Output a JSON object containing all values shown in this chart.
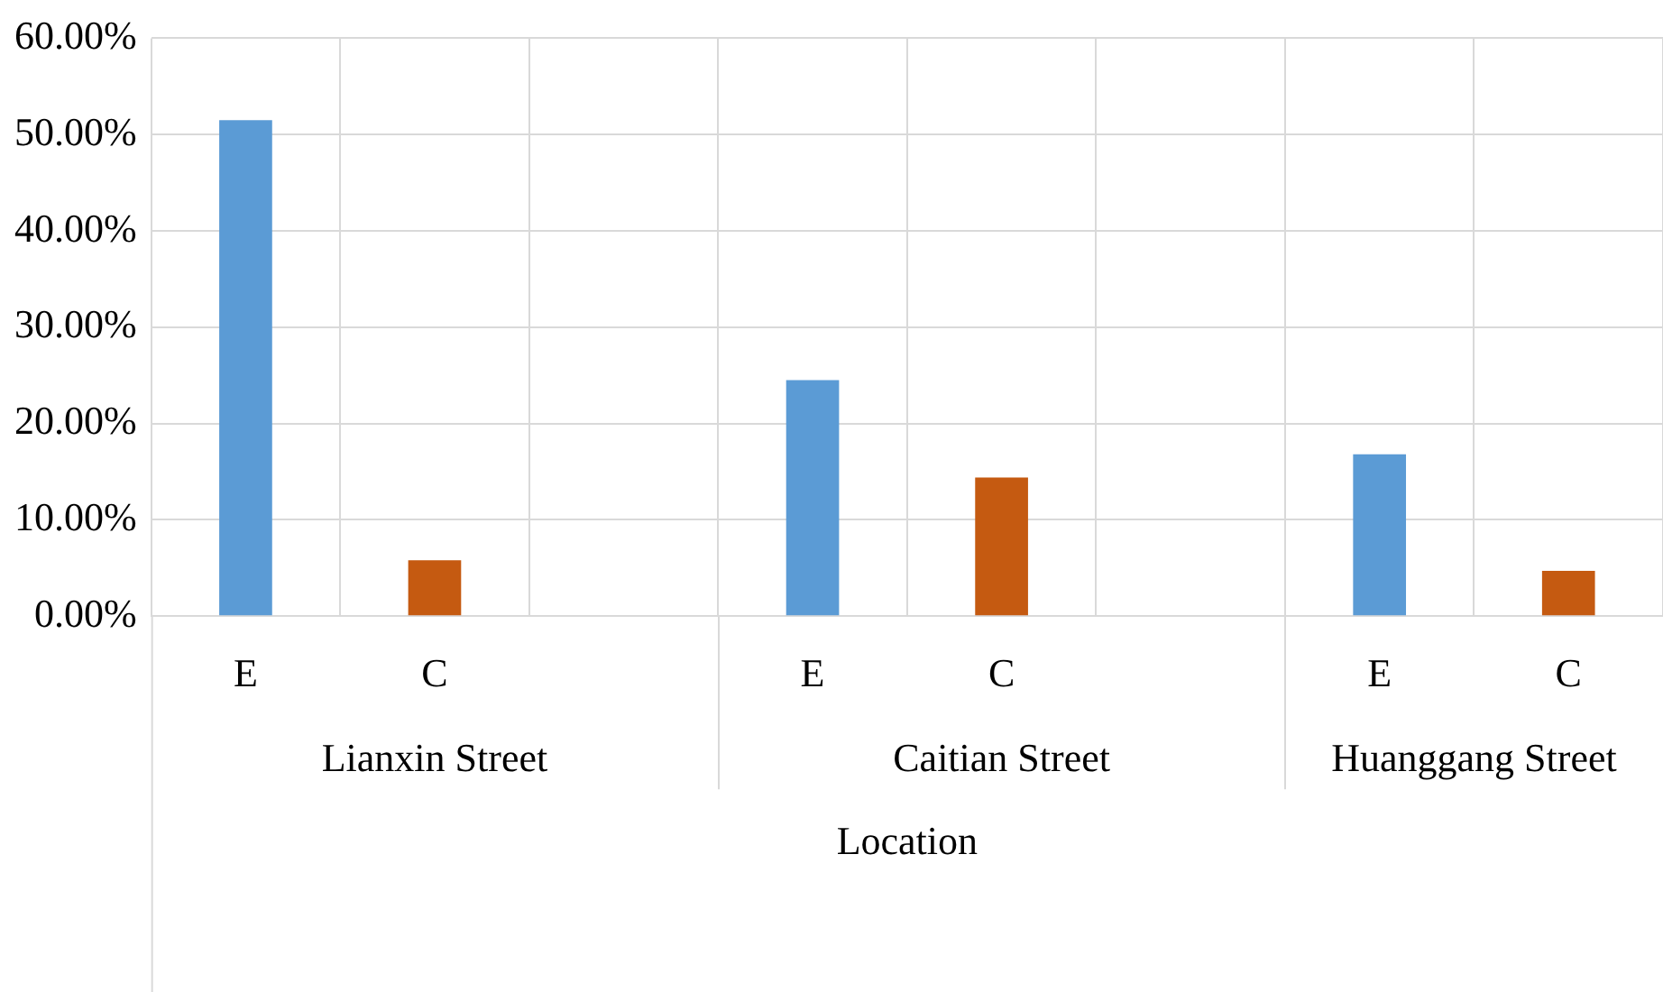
{
  "chart_data": {
    "type": "bar",
    "xlabel": "Location",
    "categories": [
      "E",
      "C",
      null,
      "E",
      "C",
      null,
      "E",
      "C"
    ],
    "values": [
      51.5,
      5.8,
      null,
      24.5,
      14.4,
      null,
      16.8,
      4.7
    ],
    "colors": [
      "#5b9bd5",
      "#c55a11",
      null,
      "#5b9bd5",
      "#c55a11",
      null,
      "#5b9bd5",
      "#c55a11"
    ],
    "ylim": [
      0,
      60
    ],
    "yticks": [
      {
        "value": 0,
        "label": "0.00%"
      },
      {
        "value": 10,
        "label": "10.00%"
      },
      {
        "value": 20,
        "label": "20.00%"
      },
      {
        "value": 30,
        "label": "30.00%"
      },
      {
        "value": 40,
        "label": "40.00%"
      },
      {
        "value": 50,
        "label": "50.00%"
      },
      {
        "value": 60,
        "label": "60.00%"
      }
    ],
    "annotations": [
      "Lianxin Street",
      "Caitian Street",
      "Huanggang Street"
    ],
    "grid": true,
    "legend": false
  }
}
